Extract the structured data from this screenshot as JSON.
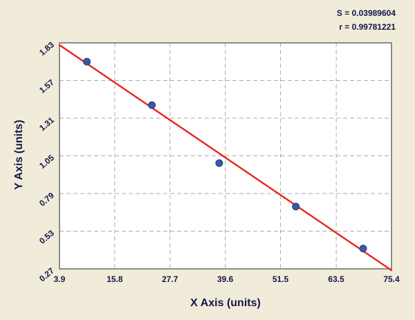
{
  "chart_data": {
    "type": "scatter",
    "title": "",
    "xlabel": "X Axis (units)",
    "ylabel": "Y Axis (units)",
    "annotations": {
      "s": "S = 0.03989604",
      "r": "r = 0.99781221"
    },
    "xlim": [
      3.9,
      75.4
    ],
    "ylim": [
      0.27,
      1.83
    ],
    "x_ticks": [
      "3.9",
      "15.8",
      "27.7",
      "39.6",
      "51.5",
      "63.5",
      "75.4"
    ],
    "y_ticks": [
      "0.27",
      "0.53",
      "0.79",
      "1.05",
      "1.31",
      "1.57",
      "1.83"
    ],
    "grid": "dashed",
    "legend": "none",
    "points": [
      {
        "x": 9.8,
        "y": 1.7
      },
      {
        "x": 23.8,
        "y": 1.4
      },
      {
        "x": 38.3,
        "y": 1.0
      },
      {
        "x": 54.8,
        "y": 0.7
      },
      {
        "x": 69.3,
        "y": 0.41
      }
    ],
    "regression_line": {
      "x1": 3.9,
      "y1": 1.815,
      "x2": 75.4,
      "y2": 0.26
    },
    "colors": {
      "background": "#f1ecd9",
      "plot_bg": "#ffffff",
      "grid": "#ababab",
      "line": "#e8231a",
      "point_fill": "#3b57a8",
      "point_edge": "#24407f",
      "text": "#15154a",
      "plot_border": "#46464a"
    }
  }
}
